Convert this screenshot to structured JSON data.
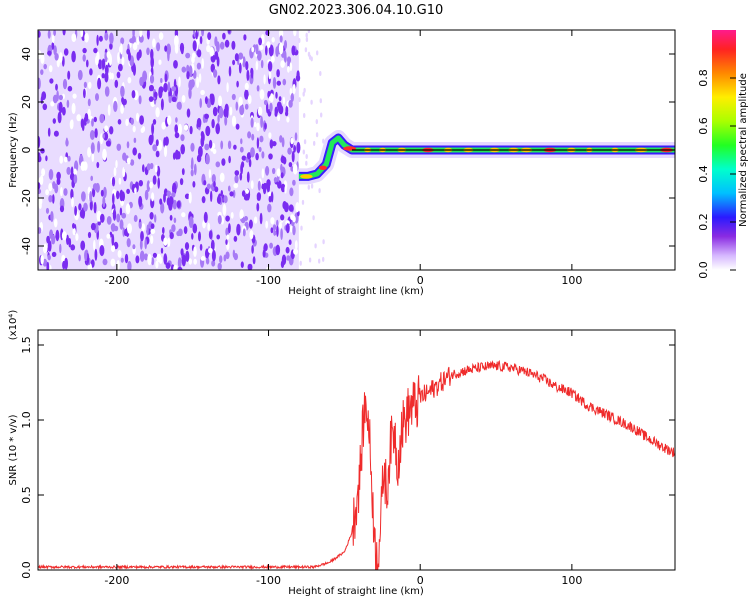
{
  "title": "GN02.2023.306.04.10.G10",
  "colors": {
    "noise": "#7a2cf0",
    "snr_line": "#ef2b2b",
    "track_line": "#000000"
  },
  "chart_data": [
    {
      "type": "heatmap",
      "xlabel": "Height of straight line (km)",
      "ylabel": "Frequency (Hz)",
      "xlim": [
        -252,
        168
      ],
      "ylim": [
        -50,
        50
      ],
      "xticks": [
        -200,
        -100,
        0,
        100
      ],
      "yticks": [
        -40,
        -20,
        0,
        20,
        40
      ],
      "xtick_labels": [
        "-200",
        "-100",
        "0",
        "100"
      ],
      "ytick_labels": [
        "-40",
        "-20",
        "0",
        "20",
        "40"
      ],
      "noise_region": {
        "x": [
          -252,
          -80
        ],
        "y": [
          -50,
          50
        ]
      },
      "track": [
        {
          "x": -80,
          "y": -11
        },
        {
          "x": -74,
          "y": -11
        },
        {
          "x": -68,
          "y": -10
        },
        {
          "x": -62,
          "y": -6
        },
        {
          "x": -58,
          "y": 3
        },
        {
          "x": -54,
          "y": 5
        },
        {
          "x": -50,
          "y": 2
        },
        {
          "x": -45,
          "y": 0
        },
        {
          "x": -35,
          "y": 0
        },
        {
          "x": 0,
          "y": 0
        },
        {
          "x": 50,
          "y": 0
        },
        {
          "x": 100,
          "y": 0
        },
        {
          "x": 168,
          "y": 0
        }
      ],
      "colorbar": {
        "label": "Normalized spectral amplitude",
        "range": [
          0,
          1
        ],
        "ticks": [
          0.0,
          0.2,
          0.4,
          0.6,
          0.8
        ],
        "tick_labels": [
          "0.0",
          "0.2",
          "0.4",
          "0.6",
          "0.8"
        ]
      }
    },
    {
      "type": "line",
      "xlabel": "Height of straight line (km)",
      "ylabel": "SNR (10 * v/v)",
      "scale_label": "(x10⁴)",
      "xlim": [
        -252,
        168
      ],
      "ylim": [
        0,
        1.6
      ],
      "xticks": [
        -200,
        -100,
        0,
        100
      ],
      "yticks": [
        0.0,
        0.5,
        1.0,
        1.5
      ],
      "xtick_labels": [
        "-200",
        "-100",
        "0",
        "100"
      ],
      "ytick_labels": [
        "0.0",
        "0.5",
        "1.0",
        "1.5"
      ],
      "series": [
        {
          "x": [
            -252,
            -150,
            -70,
            -60,
            -50,
            -45,
            -40,
            -37,
            -35,
            -33,
            -31,
            -30,
            -28,
            -26,
            -24,
            -22,
            -20,
            -17,
            -15,
            -12,
            -10,
            -8,
            -5,
            -2,
            0,
            5,
            10,
            20,
            30,
            40,
            50,
            60,
            70,
            80,
            90,
            100,
            110,
            120,
            130,
            140,
            150,
            160,
            168
          ],
          "y": [
            0.02,
            0.02,
            0.02,
            0.05,
            0.12,
            0.25,
            0.6,
            1.05,
            1.1,
            0.8,
            0.4,
            0.15,
            0.1,
            0.3,
            0.7,
            0.5,
            0.8,
            0.95,
            0.7,
            0.95,
            1.0,
            1.05,
            1.1,
            1.1,
            1.15,
            1.18,
            1.22,
            1.3,
            1.33,
            1.35,
            1.36,
            1.35,
            1.32,
            1.28,
            1.22,
            1.18,
            1.1,
            1.05,
            1.0,
            0.95,
            0.88,
            0.82,
            0.78
          ]
        }
      ]
    }
  ]
}
